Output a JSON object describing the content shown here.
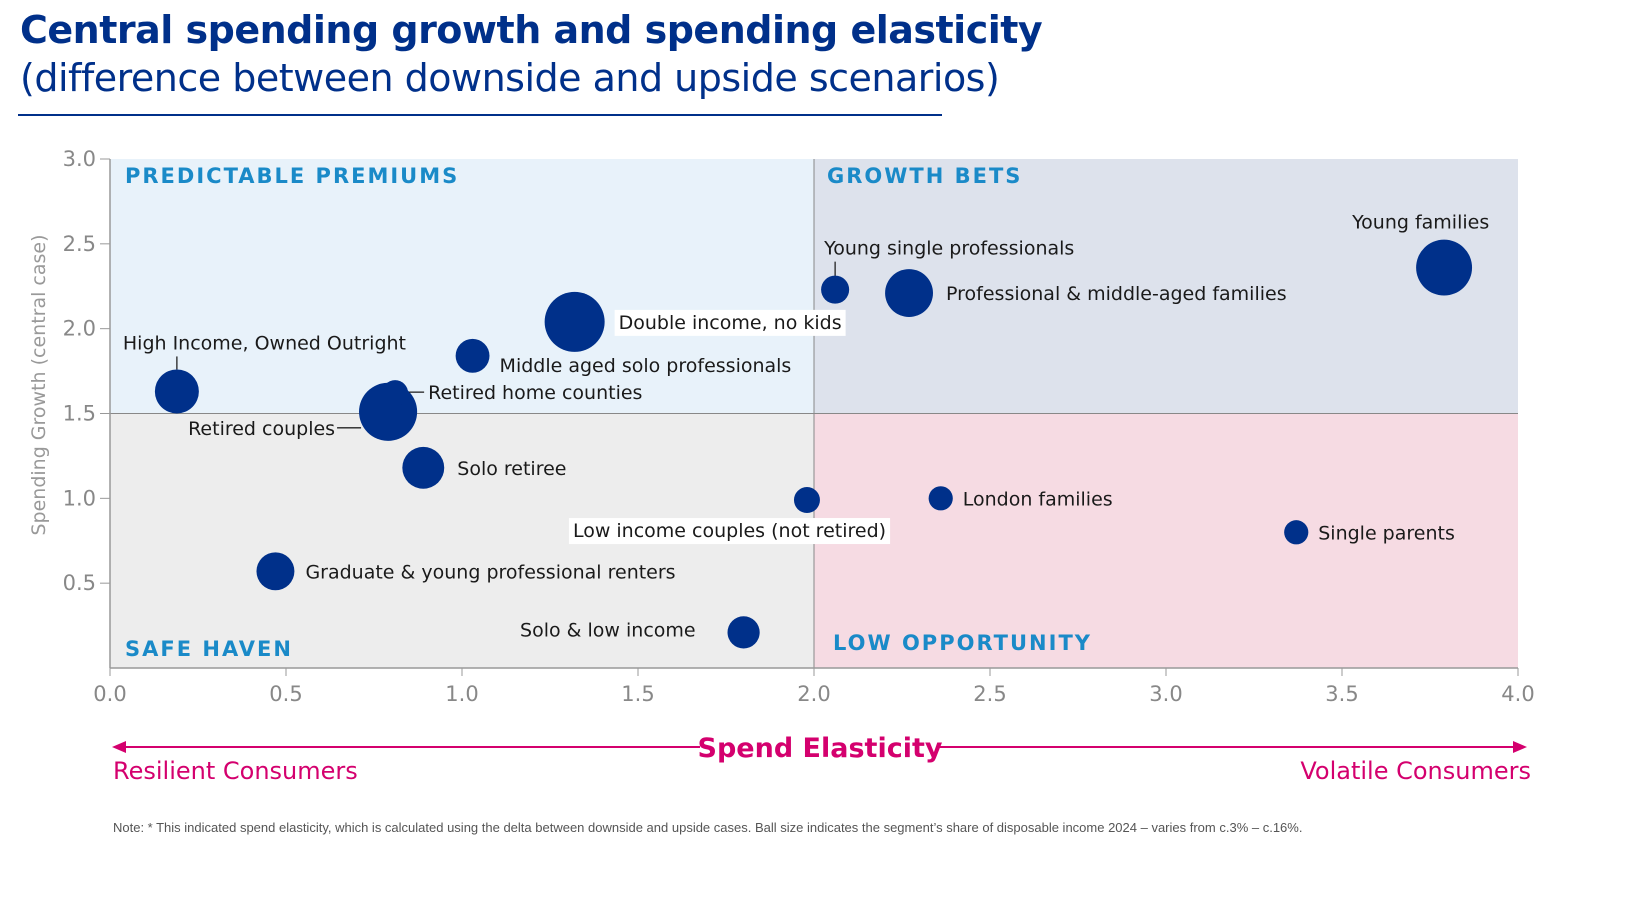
{
  "header": {
    "title": "Central spending growth and spending elasticity",
    "subtitle": "(difference between downside and upside scenarios)"
  },
  "note": "Note: * This indicated spend elasticity, which is calculated using the delta between downside and upside cases. Ball size indicates the segment’s share of disposable income 2024 – varies from c.3% – c.16%.",
  "chart_data": {
    "type": "scatter",
    "title": "Central spending growth and spending elasticity",
    "subtitle": "(difference between downside and upside scenarios)",
    "xlabel": "Spend Elasticity",
    "ylabel": "Spending Growth (central case)",
    "xlim": [
      0,
      4
    ],
    "ylim": [
      0,
      3
    ],
    "xticks": [
      "0.0",
      "0.5",
      "1.0",
      "1.5",
      "2.0",
      "2.5",
      "3.0",
      "3.5",
      "4.0"
    ],
    "yticks": [
      "0.5",
      "1.0",
      "1.5",
      "2.0",
      "2.5",
      "3.0"
    ],
    "x_axis_left_label": "Resilient Consumers",
    "x_axis_right_label": "Volatile Consumers",
    "quadrants": {
      "top_left": "PREDICTABLE PREMIUMS",
      "top_right": "GROWTH BETS",
      "bottom_left": "SAFE HAVEN",
      "bottom_right": "LOW OPPORTUNITY"
    },
    "quadrant_split": {
      "x": 2.0,
      "y": 1.5
    },
    "size_meaning": "share of disposable income 2024 (%)",
    "points": [
      {
        "label": "High Income, Owned Outright",
        "x": 0.19,
        "y": 1.63,
        "size": 8.6
      },
      {
        "label": "Retired couples",
        "x": 0.79,
        "y": 1.51,
        "size": 15
      },
      {
        "label": "Retired home counties",
        "x": 0.81,
        "y": 1.62,
        "size": 3
      },
      {
        "label": "Solo retiree",
        "x": 0.89,
        "y": 1.18,
        "size": 7.8
      },
      {
        "label": "Middle aged solo professionals",
        "x": 1.03,
        "y": 1.84,
        "size": 5.1
      },
      {
        "label": "Double income, no kids",
        "x": 1.32,
        "y": 2.04,
        "size": 16
      },
      {
        "label": "Young single professionals",
        "x": 2.06,
        "y": 2.23,
        "size": 3.5
      },
      {
        "label": "Professional & middle-aged families",
        "x": 2.27,
        "y": 2.21,
        "size": 10.2
      },
      {
        "label": "Young families",
        "x": 3.79,
        "y": 2.36,
        "size": 13.9
      },
      {
        "label": "Low income couples (not retired)",
        "x": 1.98,
        "y": 0.99,
        "size": 3
      },
      {
        "label": "London families",
        "x": 2.36,
        "y": 1.0,
        "size": 2.6
      },
      {
        "label": "Single parents",
        "x": 3.37,
        "y": 0.8,
        "size": 2.6
      },
      {
        "label": "Graduate & young professional renters",
        "x": 0.47,
        "y": 0.57,
        "size": 6.4
      },
      {
        "label": "Solo & low income",
        "x": 1.8,
        "y": 0.21,
        "size": 4.6
      }
    ],
    "colors": {
      "point": "#00308a",
      "quadrant_top_left": "#e8f2fa",
      "quadrant_top_right": "#dde2ec",
      "quadrant_bottom_left": "#ededed",
      "quadrant_bottom_right": "#f6dbe3",
      "quadrant_label": "#1a8ac8",
      "axis_accent": "#d4006e"
    }
  }
}
